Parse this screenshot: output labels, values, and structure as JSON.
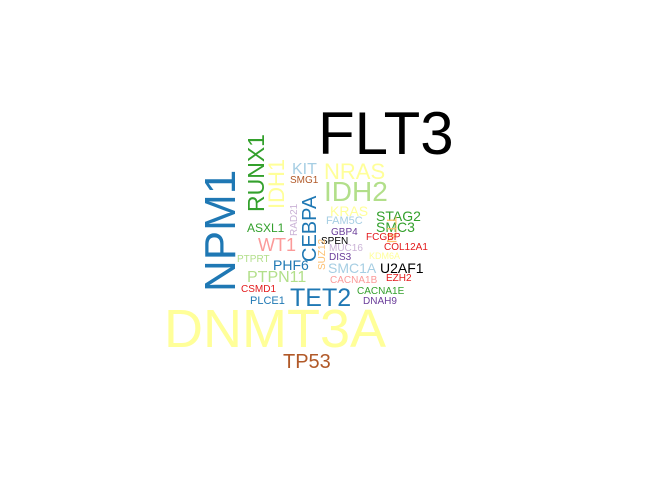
{
  "colors": {
    "black": "#000000",
    "yellow": "#FFFF99",
    "blue": "#1F78B4",
    "light_blue": "#A6CEE3",
    "green": "#33A02C",
    "light_green": "#B2DF8A",
    "red": "#E31A1C",
    "pink": "#FB9A99",
    "orange": "#FF7F00",
    "light_orange": "#FDBF6F",
    "purple": "#6A3D9A",
    "lavender": "#CAB2D6",
    "brown": "#B15928"
  },
  "words": [
    {
      "text": "FLT3",
      "color_key": "black"
    },
    {
      "text": "DNMT3A",
      "color_key": "yellow"
    },
    {
      "text": "NPM1",
      "color_key": "blue"
    },
    {
      "text": "IDH2",
      "color_key": "light_green"
    },
    {
      "text": "TET2",
      "color_key": "blue"
    },
    {
      "text": "RUNX1",
      "color_key": "green"
    },
    {
      "text": "NRAS",
      "color_key": "yellow"
    },
    {
      "text": "IDH1",
      "color_key": "yellow"
    },
    {
      "text": "TP53",
      "color_key": "brown"
    },
    {
      "text": "CEBPA",
      "color_key": "blue"
    },
    {
      "text": "WT1",
      "color_key": "pink"
    },
    {
      "text": "PTPN11",
      "color_key": "light_green"
    },
    {
      "text": "KIT",
      "color_key": "light_blue"
    },
    {
      "text": "U2AF1",
      "color_key": "black"
    },
    {
      "text": "SMC1A",
      "color_key": "light_blue"
    },
    {
      "text": "PHF6",
      "color_key": "blue"
    },
    {
      "text": "KRAS",
      "color_key": "yellow"
    },
    {
      "text": "STAG2",
      "color_key": "green"
    },
    {
      "text": "SMC3",
      "color_key": "green"
    },
    {
      "text": "TTN",
      "color_key": "light_orange"
    },
    {
      "text": "ASXL1",
      "color_key": "green"
    },
    {
      "text": "SMG1",
      "color_key": "brown"
    },
    {
      "text": "RAD21",
      "color_key": "lavender"
    },
    {
      "text": "FAM5C",
      "color_key": "light_blue"
    },
    {
      "text": "GBP4",
      "color_key": "purple"
    },
    {
      "text": "SPEN",
      "color_key": "black"
    },
    {
      "text": "FCGBP",
      "color_key": "red"
    },
    {
      "text": "COL12A1",
      "color_key": "red"
    },
    {
      "text": "PTPRT",
      "color_key": "light_green"
    },
    {
      "text": "MUC16",
      "color_key": "lavender"
    },
    {
      "text": "KDM6A",
      "color_key": "yellow"
    },
    {
      "text": "DIS3",
      "color_key": "purple"
    },
    {
      "text": "SUZ12",
      "color_key": "light_orange"
    },
    {
      "text": "EZH2",
      "color_key": "red"
    },
    {
      "text": "CACNA1B",
      "color_key": "pink"
    },
    {
      "text": "CSMD1",
      "color_key": "red"
    },
    {
      "text": "CACNA1E",
      "color_key": "green"
    },
    {
      "text": "PLCE1",
      "color_key": "blue"
    },
    {
      "text": "DNAH9",
      "color_key": "purple"
    }
  ]
}
